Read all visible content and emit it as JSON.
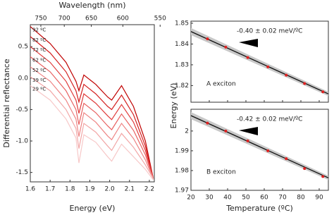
{
  "chart_data": [
    {
      "type": "line",
      "xlabel": "Energy (eV)",
      "ylabel": "Differential reflectance",
      "x2label": "Wavelength (nm)",
      "x": [
        1.6,
        1.7,
        1.78,
        1.83,
        1.845,
        1.87,
        1.93,
        1.99,
        2.01,
        2.06,
        2.12,
        2.18,
        2.22
      ],
      "series": [
        {
          "name": "92 ºC",
          "color": "#c00000",
          "values": [
            0.82,
            0.55,
            0.25,
            -0.05,
            -0.2,
            0.05,
            -0.1,
            -0.3,
            -0.35,
            -0.12,
            -0.45,
            -1.0,
            -1.6
          ]
        },
        {
          "name": "82 ºC",
          "color": "#d42020",
          "values": [
            0.66,
            0.4,
            0.1,
            -0.2,
            -0.38,
            -0.1,
            -0.25,
            -0.45,
            -0.5,
            -0.27,
            -0.58,
            -1.08,
            -1.6
          ]
        },
        {
          "name": "72 ºC",
          "color": "#e03c3c",
          "values": [
            0.5,
            0.25,
            -0.05,
            -0.35,
            -0.56,
            -0.25,
            -0.4,
            -0.6,
            -0.66,
            -0.42,
            -0.7,
            -1.15,
            -1.6
          ]
        },
        {
          "name": "62 ºC",
          "color": "#e86060",
          "values": [
            0.34,
            0.1,
            -0.2,
            -0.5,
            -0.74,
            -0.4,
            -0.55,
            -0.76,
            -0.82,
            -0.57,
            -0.83,
            -1.22,
            -1.6
          ]
        },
        {
          "name": "52 ºC",
          "color": "#ee8484",
          "values": [
            0.18,
            -0.05,
            -0.35,
            -0.65,
            -0.93,
            -0.55,
            -0.7,
            -0.92,
            -0.98,
            -0.72,
            -0.96,
            -1.3,
            -1.6
          ]
        },
        {
          "name": "39 ºC",
          "color": "#f2a6a6",
          "values": [
            0.02,
            -0.2,
            -0.5,
            -0.8,
            -1.12,
            -0.72,
            -0.86,
            -1.08,
            -1.15,
            -0.88,
            -1.1,
            -1.38,
            -1.6
          ]
        },
        {
          "name": "29 ºC",
          "color": "#f7c8c8",
          "values": [
            -0.12,
            -0.35,
            -0.65,
            -0.95,
            -1.35,
            -0.9,
            -1.02,
            -1.25,
            -1.32,
            -1.05,
            -1.25,
            -1.45,
            -1.62
          ]
        }
      ],
      "xlim": [
        1.6,
        2.225
      ],
      "ylim": [
        -1.65,
        0.85
      ],
      "xticks": [
        1.6,
        1.7,
        1.8,
        1.9,
        {
          "value": 2.0,
          "label": "2.0"
        },
        2.1,
        2.2
      ],
      "yticks": [
        0.5,
        {
          "value": 0,
          "label": "0.0"
        },
        -0.5,
        {
          "value": -1.0,
          "label": "-1.0"
        },
        -1.5
      ],
      "x2ticks": [
        750,
        700,
        650,
        600,
        550
      ]
    },
    {
      "type": "scatter",
      "ylabel": "Energy (eV)",
      "annotation": "-0.40 ± 0.02 meV/ºC",
      "label": "A exciton",
      "color": "#e02020",
      "x": [
        29,
        39,
        51,
        62,
        72,
        82,
        92
      ],
      "values": [
        1.8425,
        1.8385,
        1.8335,
        1.829,
        1.825,
        1.821,
        1.817
      ],
      "fit": {
        "x": [
          20,
          95
        ],
        "values": [
          1.846,
          1.816
        ]
      },
      "xlim": [
        20,
        95
      ],
      "ylim": [
        1.812,
        1.851
      ],
      "xticks": [
        20,
        30,
        40,
        50,
        60,
        70,
        80,
        90
      ],
      "xtick_labels": false,
      "yticks": [
        1.82,
        1.83,
        1.84,
        1.85
      ]
    },
    {
      "type": "scatter",
      "xlabel": "Temperature (ºC)",
      "annotation": "-0.42 ± 0.02 meV/ºC",
      "label": "B exciton",
      "color": "#e02020",
      "x": [
        29,
        39,
        51,
        62,
        72,
        82,
        92
      ],
      "values": [
        2.004,
        2.0,
        1.995,
        1.99,
        1.986,
        1.981,
        1.977
      ],
      "fit": {
        "x": [
          20,
          95
        ],
        "values": [
          2.0078,
          1.9763
        ]
      },
      "xlim": [
        20,
        95
      ],
      "ylim": [
        1.97,
        2.011
      ],
      "xticks": [
        20,
        30,
        40,
        50,
        60,
        70,
        80,
        90
      ],
      "xtick_labels": true,
      "yticks": [
        1.97,
        1.98,
        1.99,
        2
      ]
    }
  ]
}
